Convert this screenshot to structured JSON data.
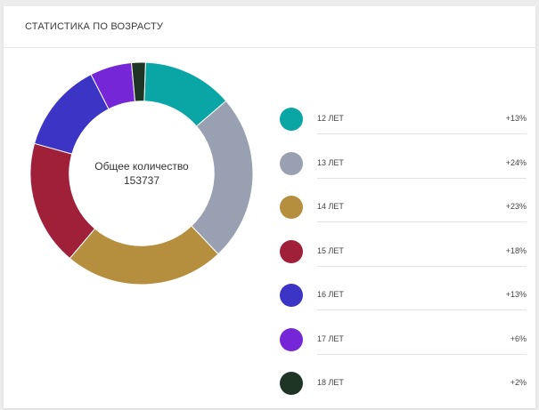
{
  "widget": {
    "title": "СТАТИСТИКА ПО ВОЗРАСТУ"
  },
  "center": {
    "label": "Общее количество",
    "total": "153737"
  },
  "chart_data": {
    "type": "pie",
    "title": "СТАТИСТИКА ПО ВОЗРАСТУ",
    "total": 153737,
    "categories": [
      "12 ЛЕТ",
      "13 ЛЕТ",
      "14 ЛЕТ",
      "15 ЛЕТ",
      "16 ЛЕТ",
      "17 ЛЕТ",
      "18 ЛЕТ"
    ],
    "values": [
      13,
      24,
      23,
      18,
      13,
      6,
      2
    ],
    "value_labels": [
      "+13%",
      "+24%",
      "+23%",
      "+18%",
      "+13%",
      "+6%",
      "+2%"
    ],
    "colors": [
      "#0aa5a5",
      "#98a0b2",
      "#b58e3e",
      "#a0203a",
      "#3c34c4",
      "#7526d6",
      "#1e3526"
    ],
    "inner_radius_ratio": 0.65,
    "legend_position": "right"
  }
}
